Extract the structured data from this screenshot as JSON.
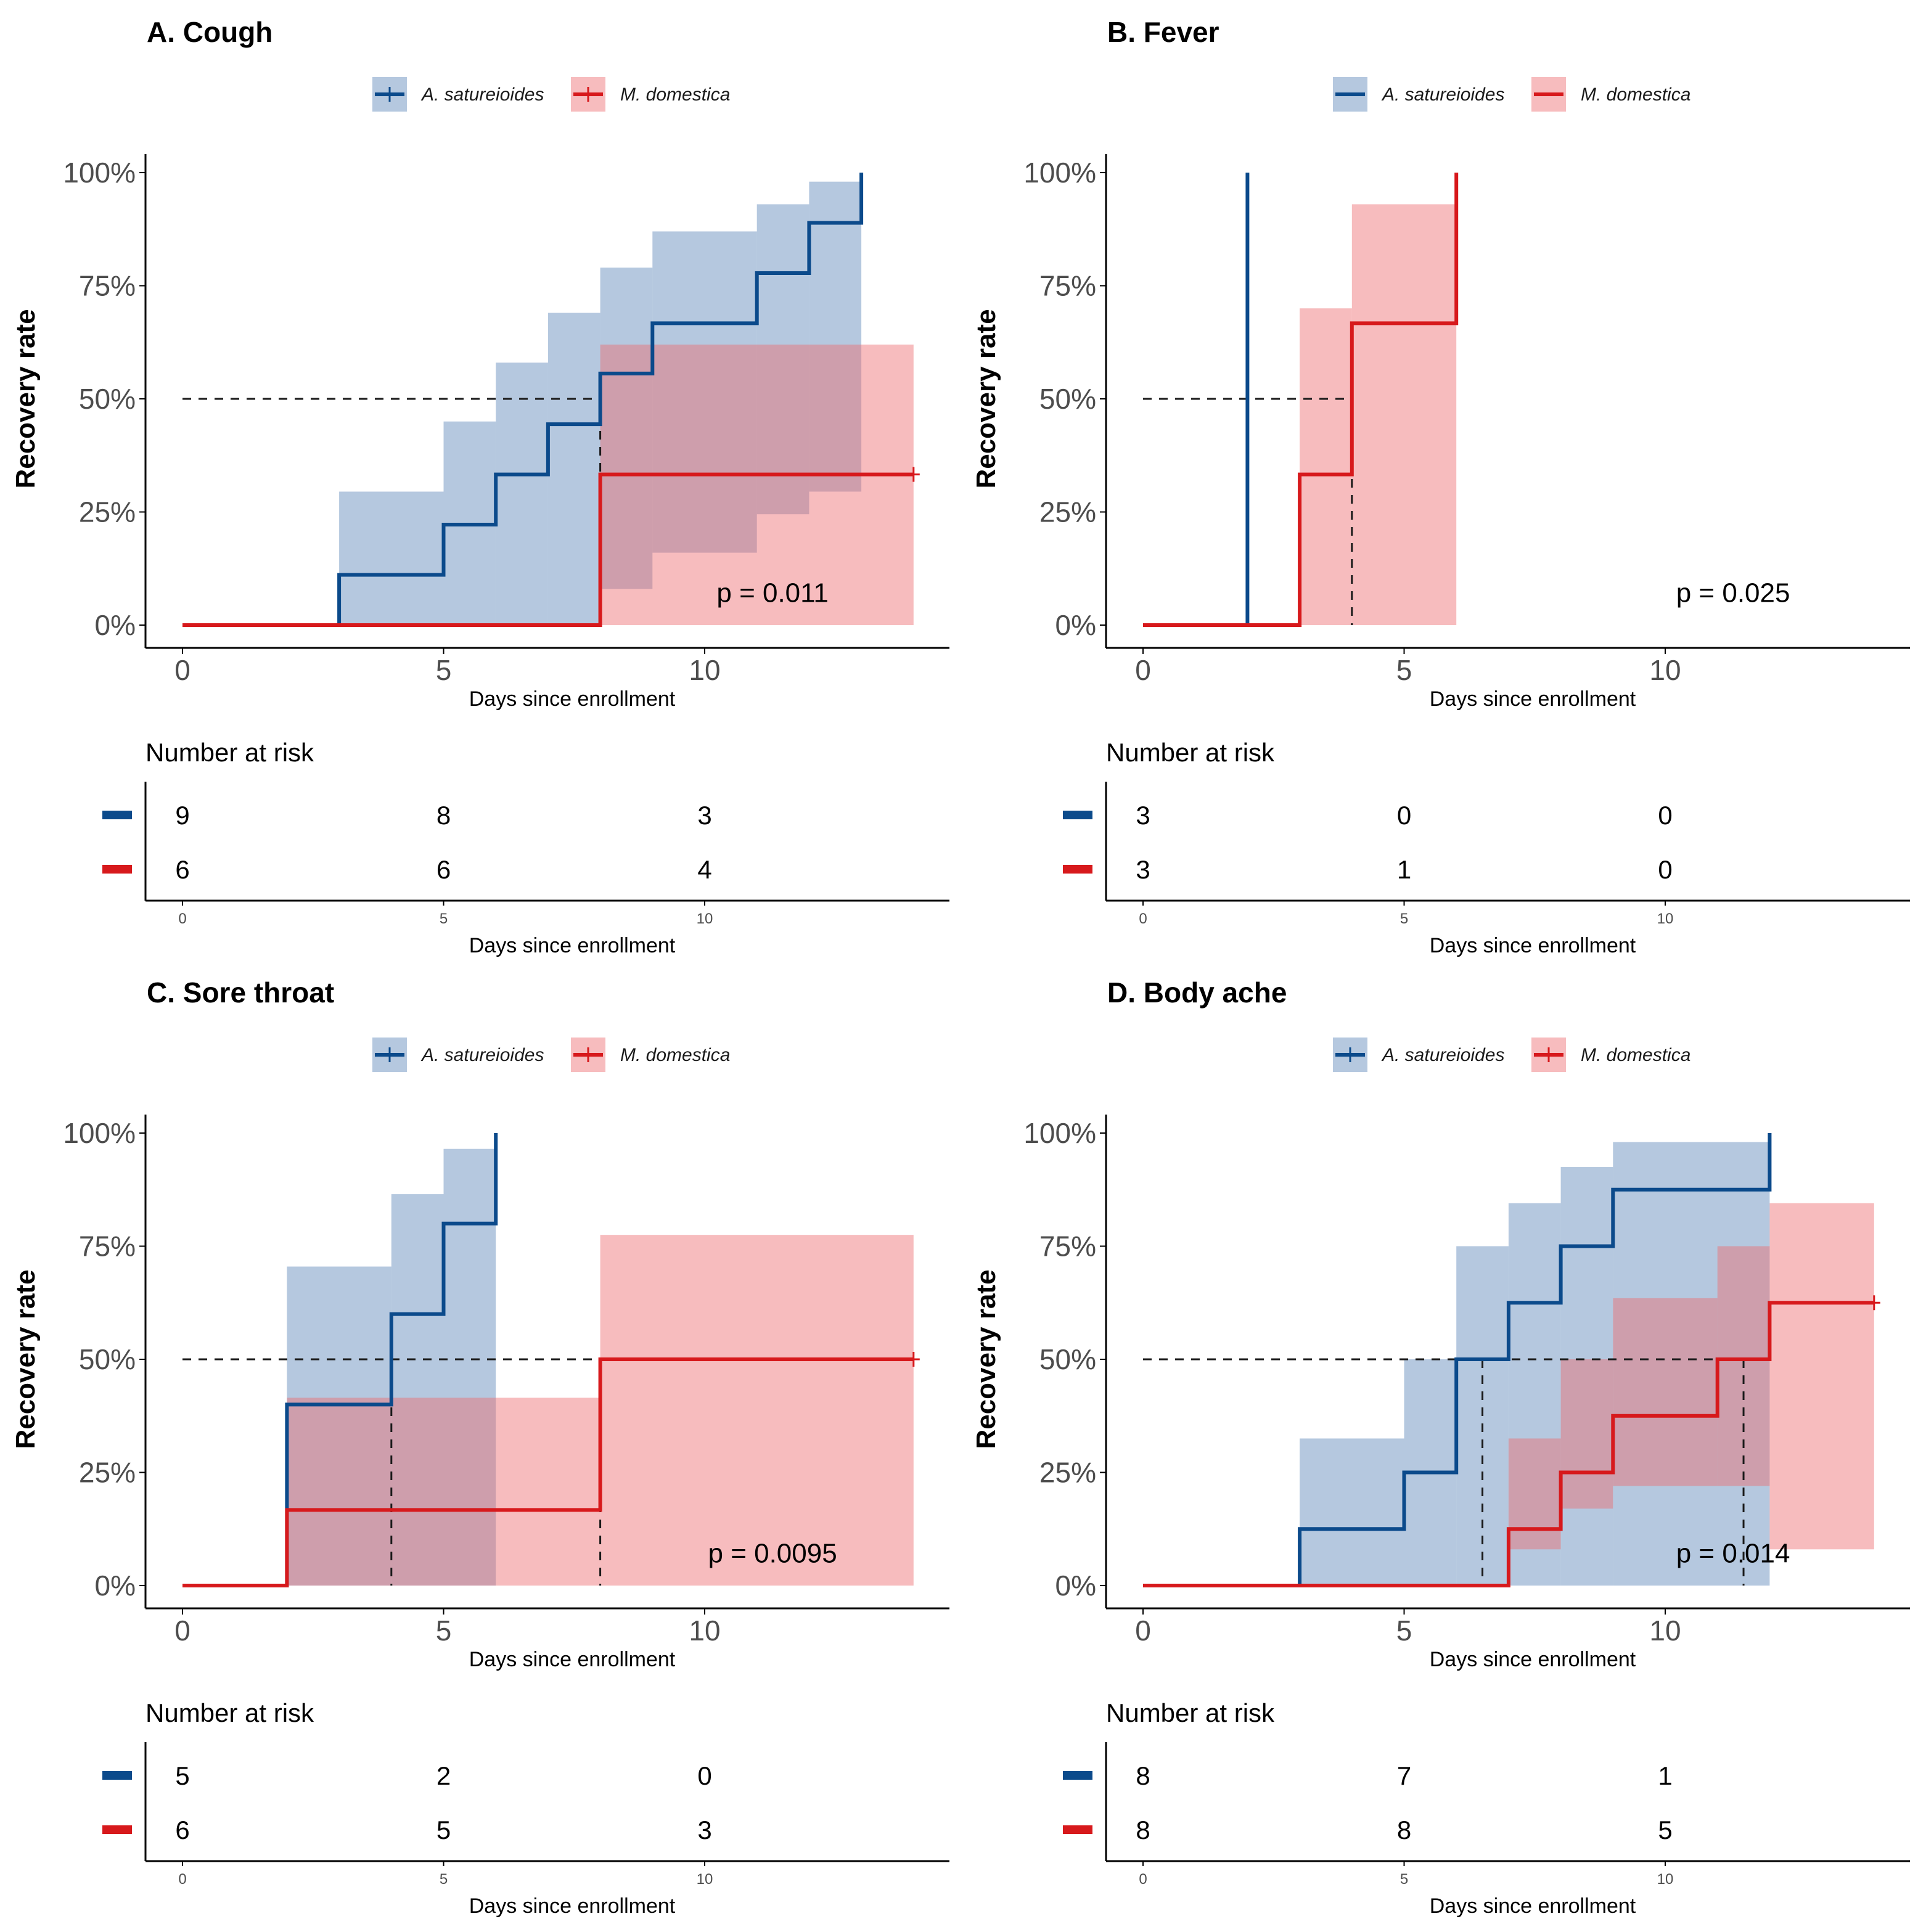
{
  "colors": {
    "series_line": [
      "#0B4A8B",
      "#D7191C"
    ],
    "series_fill": [
      "#5A86B8",
      "#EE6B6E"
    ],
    "fill_opacity": 0.45,
    "median_line": "#1a1a1a",
    "axis": "#000000"
  },
  "common": {
    "ylabel": "Recovery rate",
    "xlabel": "Days since enrollment",
    "risk_title": "Number at risk",
    "legend": [
      "A. satureioides",
      "M. domestica"
    ],
    "yticks": [
      0,
      25,
      50,
      75,
      100
    ],
    "ytick_labels": [
      "0%",
      "25%",
      "50%",
      "75%",
      "100%"
    ],
    "xticks": [
      0,
      5,
      10
    ],
    "xtick_labels": [
      "0",
      "5",
      "10"
    ],
    "xlim": [
      0,
      14.7
    ],
    "ylim": [
      0,
      100
    ]
  },
  "chart_data": [
    {
      "type": "line",
      "subtype": "kaplan-meier-cumulative-incidence",
      "title": "A. Cough",
      "xlabel": "Days since enrollment",
      "ylabel": "Recovery rate",
      "legend_position": "top",
      "legend_censor_marks": true,
      "pvalue": "p = 0.011",
      "medians": [
        8,
        null
      ],
      "series": [
        {
          "name": "A. satureioides",
          "steps": [
            [
              0,
              0
            ],
            [
              3,
              11.1
            ],
            [
              5,
              22.2
            ],
            [
              6,
              33.3
            ],
            [
              7,
              44.4
            ],
            [
              8,
              55.6
            ],
            [
              9,
              66.7
            ],
            [
              11,
              77.8
            ],
            [
              12,
              88.9
            ],
            [
              13,
              100
            ]
          ],
          "end": 13,
          "ci_upper": [
            [
              0,
              0
            ],
            [
              3,
              29.5
            ],
            [
              5,
              45
            ],
            [
              6,
              58
            ],
            [
              7,
              69
            ],
            [
              8,
              79
            ],
            [
              9,
              87
            ],
            [
              11,
              93
            ],
            [
              12,
              98
            ],
            [
              13,
              98
            ]
          ],
          "ci_lower": [
            [
              0,
              0
            ],
            [
              8,
              8
            ],
            [
              9,
              16
            ],
            [
              11,
              24.5
            ],
            [
              12,
              29.5
            ],
            [
              13,
              29.5
            ]
          ],
          "censor": []
        },
        {
          "name": "M. domestica",
          "steps": [
            [
              0,
              0
            ],
            [
              8,
              33.3
            ]
          ],
          "end": 14,
          "ci_upper": [
            [
              0,
              0
            ],
            [
              8,
              62
            ],
            [
              14,
              62
            ]
          ],
          "ci_lower": [
            [
              0,
              0
            ],
            [
              8,
              0
            ],
            [
              14,
              0
            ]
          ],
          "censor": [
            [
              14,
              33.3
            ]
          ]
        }
      ],
      "risk_table": {
        "times": [
          0,
          5,
          10
        ],
        "rows": [
          {
            "name": "A. satureioides",
            "values": [
              "9",
              "8",
              "3"
            ]
          },
          {
            "name": "M. domestica",
            "values": [
              "6",
              "6",
              "4"
            ]
          }
        ]
      }
    },
    {
      "type": "line",
      "subtype": "kaplan-meier-cumulative-incidence",
      "title": "B. Fever",
      "xlabel": "Days since enrollment",
      "ylabel": "Recovery rate",
      "legend_position": "top",
      "legend_censor_marks": false,
      "pvalue": "p = 0.025",
      "medians": [
        2,
        4
      ],
      "series": [
        {
          "name": "A. satureioides",
          "steps": [
            [
              0,
              0
            ],
            [
              2,
              100
            ]
          ],
          "end": 2,
          "ci_upper": [],
          "ci_lower": [],
          "censor": []
        },
        {
          "name": "M. domestica",
          "steps": [
            [
              0,
              0
            ],
            [
              3,
              33.3
            ],
            [
              4,
              66.7
            ],
            [
              6,
              100
            ]
          ],
          "end": 6,
          "ci_upper": [
            [
              0,
              0
            ],
            [
              3,
              70
            ],
            [
              4,
              93
            ],
            [
              6,
              93
            ]
          ],
          "ci_lower": [
            [
              0,
              0
            ],
            [
              3,
              0
            ],
            [
              6,
              0
            ]
          ],
          "censor": []
        }
      ],
      "risk_table": {
        "times": [
          0,
          5,
          10
        ],
        "rows": [
          {
            "name": "A. satureioides",
            "values": [
              "3",
              "0",
              "0"
            ]
          },
          {
            "name": "M. domestica",
            "values": [
              "3",
              "1",
              "0"
            ]
          }
        ]
      }
    },
    {
      "type": "line",
      "subtype": "kaplan-meier-cumulative-incidence",
      "title": "C. Sore throat",
      "xlabel": "Days since enrollment",
      "ylabel": "Recovery rate",
      "legend_position": "top",
      "legend_censor_marks": true,
      "pvalue": "p = 0.0095",
      "medians": [
        4,
        8
      ],
      "series": [
        {
          "name": "A. satureioides",
          "steps": [
            [
              0,
              0
            ],
            [
              2,
              40
            ],
            [
              4,
              60
            ],
            [
              5,
              80
            ],
            [
              6,
              100
            ]
          ],
          "end": 6,
          "ci_upper": [
            [
              0,
              0
            ],
            [
              2,
              70.5
            ],
            [
              4,
              86.5
            ],
            [
              5,
              96.5
            ],
            [
              6,
              96.5
            ]
          ],
          "ci_lower": [
            [
              0,
              0
            ],
            [
              2,
              0
            ],
            [
              6,
              0
            ]
          ],
          "censor": []
        },
        {
          "name": "M. domestica",
          "steps": [
            [
              0,
              0
            ],
            [
              2,
              16.7
            ],
            [
              8,
              50
            ]
          ],
          "end": 14,
          "ci_upper": [
            [
              0,
              0
            ],
            [
              2,
              41.5
            ],
            [
              8,
              77.5
            ],
            [
              14,
              77.5
            ]
          ],
          "ci_lower": [
            [
              0,
              0
            ],
            [
              2,
              0
            ],
            [
              14,
              0
            ]
          ],
          "censor": [
            [
              14,
              50
            ]
          ]
        }
      ],
      "risk_table": {
        "times": [
          0,
          5,
          10
        ],
        "rows": [
          {
            "name": "A. satureioides",
            "values": [
              "5",
              "2",
              "0"
            ]
          },
          {
            "name": "M. domestica",
            "values": [
              "6",
              "5",
              "3"
            ]
          }
        ]
      }
    },
    {
      "type": "line",
      "subtype": "kaplan-meier-cumulative-incidence",
      "title": "D. Body ache",
      "xlabel": "Days since enrollment",
      "ylabel": "Recovery rate",
      "legend_position": "top",
      "legend_censor_marks": true,
      "pvalue": "p = 0.014",
      "medians": [
        6.5,
        11.5
      ],
      "series": [
        {
          "name": "A. satureioides",
          "steps": [
            [
              0,
              0
            ],
            [
              3,
              12.5
            ],
            [
              5,
              25
            ],
            [
              6,
              50
            ],
            [
              7,
              62.5
            ],
            [
              8,
              75
            ],
            [
              9,
              87.5
            ],
            [
              12,
              100
            ]
          ],
          "end": 12,
          "ci_upper": [
            [
              0,
              0
            ],
            [
              3,
              32.5
            ],
            [
              5,
              50
            ],
            [
              6,
              75
            ],
            [
              7,
              84.5
            ],
            [
              8,
              92.5
            ],
            [
              9,
              98
            ],
            [
              12,
              98
            ]
          ],
          "ci_lower": [
            [
              0,
              0
            ],
            [
              3,
              0
            ],
            [
              12,
              0
            ]
          ],
          "censor": []
        },
        {
          "name": "M. domestica",
          "steps": [
            [
              0,
              0
            ],
            [
              7,
              12.5
            ],
            [
              8,
              25
            ],
            [
              9,
              37.5
            ],
            [
              11,
              50
            ],
            [
              12,
              62.5
            ]
          ],
          "end": 14,
          "ci_upper": [
            [
              0,
              0
            ],
            [
              7,
              32.5
            ],
            [
              8,
              50
            ],
            [
              9,
              63.5
            ],
            [
              11,
              75
            ],
            [
              12,
              84.5
            ],
            [
              14,
              84.5
            ]
          ],
          "ci_lower": [
            [
              0,
              0
            ],
            [
              7,
              8
            ],
            [
              8,
              17
            ],
            [
              9,
              22
            ],
            [
              12,
              8
            ],
            [
              14,
              8
            ]
          ],
          "censor": [
            [
              14,
              62.5
            ]
          ]
        }
      ],
      "risk_table": {
        "times": [
          0,
          5,
          10
        ],
        "rows": [
          {
            "name": "A. satureioides",
            "values": [
              "8",
              "7",
              "1"
            ]
          },
          {
            "name": "M. domestica",
            "values": [
              "8",
              "8",
              "5"
            ]
          }
        ]
      }
    }
  ]
}
